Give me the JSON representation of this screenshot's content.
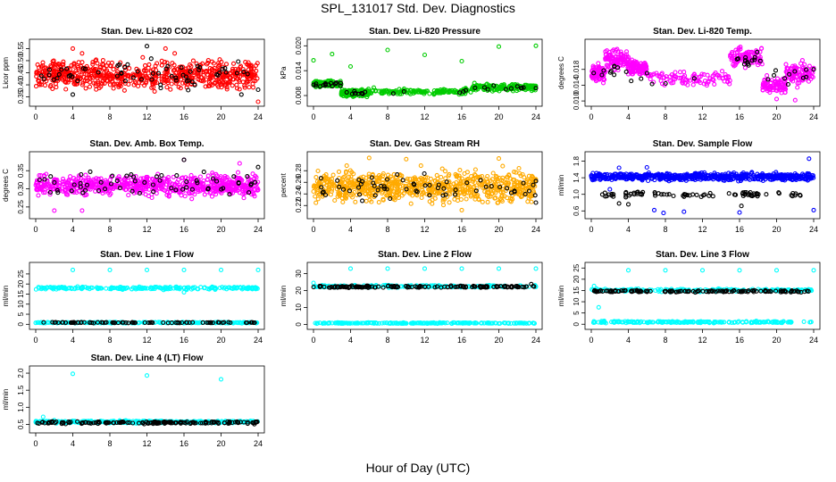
{
  "page": {
    "title": "SPL_131017  Std. Dev. Diagnostics",
    "xlabel": "Hour of Day (UTC)"
  },
  "chart_data": [
    {
      "type": "scatter",
      "title": "Stan. Dev. Li-820 CO2",
      "ylabel": "Licor ppm",
      "xlim": [
        0,
        24
      ],
      "xticks": [
        0,
        4,
        8,
        12,
        16,
        20,
        24
      ],
      "ylim": [
        0.33,
        0.57
      ],
      "yticks": [
        "0.35",
        "0.40",
        "0.45",
        "0.50",
        "0.55"
      ],
      "ytick_values": [
        0.35,
        0.4,
        0.45,
        0.5,
        0.55
      ],
      "series": [
        {
          "color": "#ff0000",
          "density": 700,
          "bands": [
            [
              0,
              24,
              0.36,
              0.52
            ]
          ],
          "points": [
            [
              4,
              0.55
            ],
            [
              5,
              0.53
            ],
            [
              14,
              0.55
            ],
            [
              15,
              0.53
            ],
            [
              24,
              0.33
            ]
          ]
        },
        {
          "color": "#000000",
          "density": 60,
          "bands": [
            [
              0,
              24,
              0.37,
              0.52
            ]
          ],
          "points": [
            [
              12,
              0.56
            ],
            [
              4,
              0.36
            ],
            [
              22.2,
              0.36
            ],
            [
              24,
              0.38
            ]
          ]
        }
      ]
    },
    {
      "type": "scatter",
      "title": "Stan. Dev. Li-820 Pressure",
      "ylabel": "kPa",
      "xlim": [
        0,
        24
      ],
      "xticks": [
        0,
        4,
        8,
        12,
        16,
        20,
        24
      ],
      "ylim": [
        0.0065,
        0.0205
      ],
      "yticks": [
        "0.008",
        "0.014",
        "0.020"
      ],
      "ytick_values": [
        0.008,
        0.014,
        0.02
      ],
      "series": [
        {
          "color": "#00cc00",
          "density": 650,
          "bands": [
            [
              0,
              3,
              0.0098,
              0.0118
            ],
            [
              3,
              6,
              0.0075,
              0.0098
            ],
            [
              6,
              17,
              0.008,
              0.01
            ],
            [
              17,
              24,
              0.0088,
              0.0112
            ]
          ],
          "points": [
            [
              0,
              0.0165
            ],
            [
              2,
              0.018
            ],
            [
              4,
              0.015
            ],
            [
              8,
              0.019
            ],
            [
              12,
              0.0178
            ],
            [
              16,
              0.0163
            ],
            [
              20,
              0.0198
            ],
            [
              24,
              0.02
            ]
          ]
        },
        {
          "color": "#000000",
          "density": 40,
          "bands": [
            [
              0,
              3,
              0.0098,
              0.0115
            ],
            [
              3,
              6,
              0.0078,
              0.0095
            ],
            [
              6,
              17,
              0.008,
              0.0097
            ],
            [
              17,
              24,
              0.009,
              0.0108
            ]
          ],
          "points": [
            [
              24,
              0.0098
            ],
            [
              22,
              0.0102
            ]
          ]
        }
      ]
    },
    {
      "type": "scatter",
      "title": "Stan. Dev. Li-820 Temp.",
      "ylabel": "degrees C",
      "xlim": [
        0,
        24
      ],
      "xticks": [
        0,
        4,
        8,
        12,
        16,
        20,
        24
      ],
      "ylim": [
        0.0098,
        0.0245
      ],
      "yticks": [
        "0.010",
        "0.014",
        "0.018"
      ],
      "ytick_values": [
        0.01,
        0.014,
        0.018
      ],
      "series": [
        {
          "color": "#ff00ff",
          "density": 650,
          "bands": [
            [
              0,
              1.5,
              0.014,
              0.02
            ],
            [
              1.5,
              4,
              0.017,
              0.024
            ],
            [
              4,
              6,
              0.016,
              0.021
            ],
            [
              6,
              15,
              0.013,
              0.018
            ],
            [
              15,
              18.5,
              0.018,
              0.024
            ],
            [
              18.5,
              21,
              0.011,
              0.017
            ],
            [
              21,
              24,
              0.013,
              0.021
            ]
          ],
          "points": [
            [
              20,
              0.0105
            ],
            [
              22,
              0.0102
            ]
          ]
        },
        {
          "color": "#000000",
          "density": 40,
          "bands": [
            [
              0,
              4,
              0.015,
              0.021
            ],
            [
              4,
              15,
              0.0135,
              0.018
            ],
            [
              15,
              18.5,
              0.018,
              0.023
            ],
            [
              18.5,
              24,
              0.013,
              0.02
            ]
          ],
          "points": [
            [
              24,
              0.018
            ]
          ]
        }
      ]
    },
    {
      "type": "scatter",
      "title": "Stan. Dev. Amb. Box Temp.",
      "ylabel": "degrees C",
      "xlim": [
        0,
        24
      ],
      "xticks": [
        0,
        4,
        8,
        12,
        16,
        20,
        24
      ],
      "ylim": [
        0.23,
        0.39
      ],
      "yticks": [
        "0.25",
        "0.30",
        "0.35"
      ],
      "ytick_values": [
        0.25,
        0.3,
        0.35
      ],
      "series": [
        {
          "color": "#ff00ff",
          "density": 700,
          "bands": [
            [
              0,
              24,
              0.27,
              0.35
            ]
          ],
          "points": [
            [
              2,
              0.24
            ],
            [
              5,
              0.24
            ],
            [
              16,
              0.38
            ],
            [
              22,
              0.37
            ]
          ]
        },
        {
          "color": "#000000",
          "density": 60,
          "bands": [
            [
              0,
              24,
              0.27,
              0.36
            ]
          ],
          "points": [
            [
              16,
              0.38
            ],
            [
              24,
              0.36
            ]
          ]
        }
      ]
    },
    {
      "type": "scatter",
      "title": "Stan. Dev. Gas Stream RH",
      "ylabel": "percent",
      "xlim": [
        0,
        24
      ],
      "xticks": [
        0,
        4,
        8,
        12,
        16,
        20,
        24
      ],
      "ylim": [
        0.205,
        0.305
      ],
      "yticks": [
        "0.22",
        "0.24",
        "0.26",
        "0.28"
      ],
      "ytick_values": [
        0.22,
        0.24,
        0.26,
        0.28
      ],
      "series": [
        {
          "color": "#ffaa00",
          "density": 750,
          "bands": [
            [
              0,
              24,
              0.215,
              0.29
            ]
          ],
          "points": [
            [
              6,
              0.302
            ],
            [
              10,
              0.3
            ],
            [
              20,
              0.301
            ],
            [
              16,
              0.212
            ]
          ]
        },
        {
          "color": "#000000",
          "density": 60,
          "bands": [
            [
              0,
              24,
              0.222,
              0.28
            ]
          ],
          "points": [
            [
              24,
              0.262
            ],
            [
              24,
              0.225
            ]
          ]
        }
      ]
    },
    {
      "type": "scatter",
      "title": "Stan. Dev. Sample Flow",
      "ylabel": "ml/min",
      "xlim": [
        0,
        24
      ],
      "xticks": [
        0,
        4,
        8,
        12,
        16,
        20,
        24
      ],
      "ylim": [
        0.52,
        1.92
      ],
      "yticks": [
        "0.6",
        "1.0",
        "1.4",
        "1.8"
      ],
      "ytick_values": [
        0.6,
        1.0,
        1.4,
        1.8
      ],
      "series": [
        {
          "color": "#0000ff",
          "density": 650,
          "bands": [
            [
              0,
              24,
              1.3,
              1.55
            ]
          ],
          "points": [
            [
              3,
              1.64
            ],
            [
              6,
              1.65
            ],
            [
              6.8,
              0.62
            ],
            [
              7.8,
              0.55
            ],
            [
              10,
              0.58
            ],
            [
              16,
              0.56
            ],
            [
              23.5,
              1.86
            ],
            [
              24,
              0.62
            ],
            [
              2,
              1.12
            ]
          ]
        },
        {
          "color": "#000000",
          "density": 80,
          "bands": [
            [
              1,
              24,
              0.9,
              1.1
            ]
          ],
          "points": [
            [
              1.5,
              0.95
            ],
            [
              3,
              0.78
            ],
            [
              16.2,
              0.72
            ],
            [
              4,
              0.76
            ]
          ]
        }
      ]
    },
    {
      "type": "scatter",
      "title": "Stan. Dev. Line 1 Flow",
      "ylabel": "ml/min",
      "xlim": [
        0,
        24
      ],
      "xticks": [
        0,
        4,
        8,
        12,
        16,
        20,
        24
      ],
      "ylim": [
        -0.3,
        28.5
      ],
      "yticks": [
        "0",
        "5",
        "10",
        "15",
        "20",
        "25"
      ],
      "ytick_values": [
        0,
        5,
        10,
        15,
        20,
        25
      ],
      "series": [
        {
          "color": "#00ffff",
          "density": 450,
          "bands": [
            [
              0,
              24,
              17.0,
              19.0
            ],
            [
              0,
              24,
              0.4,
              1.2
            ]
          ],
          "points": [
            [
              4,
              27
            ],
            [
              8,
              27
            ],
            [
              12,
              27
            ],
            [
              16,
              27
            ],
            [
              20,
              27
            ],
            [
              24,
              27
            ],
            [
              16,
              15.9
            ]
          ]
        },
        {
          "color": "#000000",
          "density": 80,
          "bands": [
            [
              0,
              24,
              0.6,
              1.1
            ]
          ],
          "points": []
        }
      ]
    },
    {
      "type": "scatter",
      "title": "Stan. Dev. Line 2 Flow",
      "ylabel": "ml/min",
      "xlim": [
        0,
        24
      ],
      "xticks": [
        0,
        4,
        8,
        12,
        16,
        20,
        24
      ],
      "ylim": [
        -0.3,
        34
      ],
      "yticks": [
        "0",
        "10",
        "20",
        "30"
      ],
      "ytick_values": [
        0,
        10,
        20,
        30
      ],
      "series": [
        {
          "color": "#00ffff",
          "density": 400,
          "bands": [
            [
              0,
              24,
              0.3,
              1.2
            ],
            [
              0,
              24,
              21.5,
              23.5
            ]
          ],
          "points": [
            [
              4,
              33
            ],
            [
              8,
              33
            ],
            [
              12,
              33
            ],
            [
              16,
              33
            ],
            [
              20,
              33
            ],
            [
              24,
              33
            ],
            [
              0,
              24.5
            ]
          ]
        },
        {
          "color": "#000000",
          "density": 140,
          "bands": [
            [
              0,
              24,
              21.5,
              23.0
            ]
          ],
          "points": [
            [
              23.5,
              23.8
            ]
          ]
        }
      ]
    },
    {
      "type": "scatter",
      "title": "Stan. Dev. Line 3 Flow",
      "ylabel": "ml/min",
      "xlim": [
        0,
        24
      ],
      "xticks": [
        0,
        4,
        8,
        12,
        16,
        20,
        24
      ],
      "ylim": [
        -0.3,
        25.5
      ],
      "yticks": [
        "0",
        "5",
        "10",
        "15",
        "20",
        "25"
      ],
      "ytick_values": [
        0,
        5,
        10,
        15,
        20,
        25
      ],
      "series": [
        {
          "color": "#00ffff",
          "density": 400,
          "bands": [
            [
              0,
              24,
              0.4,
              1.5
            ],
            [
              0,
              24,
              14.2,
              16.0
            ]
          ],
          "points": [
            [
              4,
              24
            ],
            [
              8,
              24
            ],
            [
              12,
              24
            ],
            [
              16,
              24
            ],
            [
              20,
              24
            ],
            [
              24,
              24
            ],
            [
              0.8,
              7.5
            ],
            [
              0.3,
              17
            ]
          ]
        },
        {
          "color": "#000000",
          "density": 140,
          "bands": [
            [
              0,
              24,
              14.0,
              15.3
            ]
          ],
          "points": []
        }
      ]
    },
    {
      "type": "scatter",
      "title": "Stan. Dev. Line 4 (LT) Flow",
      "ylabel": "ml/min",
      "xlim": [
        0,
        24
      ],
      "xticks": [
        0,
        4,
        8,
        12,
        16,
        20,
        24
      ],
      "ylim": [
        0.38,
        2.08
      ],
      "yticks": [
        "0.5",
        "1.0",
        "1.5",
        "2.0"
      ],
      "ytick_values": [
        0.5,
        1.0,
        1.5,
        2.0
      ],
      "series": [
        {
          "color": "#00ffff",
          "density": 450,
          "bands": [
            [
              0,
              24,
              0.52,
              0.62
            ]
          ],
          "points": [
            [
              4,
              1.98
            ],
            [
              12,
              1.93
            ],
            [
              20,
              1.82
            ],
            [
              0.8,
              0.72
            ],
            [
              2,
              0.62
            ]
          ]
        },
        {
          "color": "#000000",
          "density": 160,
          "bands": [
            [
              0,
              24,
              0.5,
              0.6
            ]
          ],
          "points": []
        }
      ]
    }
  ]
}
